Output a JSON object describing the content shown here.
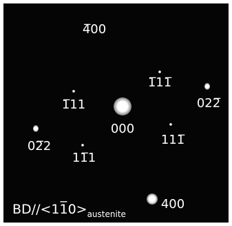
{
  "labels": [
    "4̅00",
    "1̅11̅",
    "022̅",
    "1̅11",
    "000",
    "02̅2",
    "111̅",
    "11̅1",
    "400"
  ],
  "caption": {
    "text": "BD//<11̅0>",
    "subtext": "austenite"
  }
}
